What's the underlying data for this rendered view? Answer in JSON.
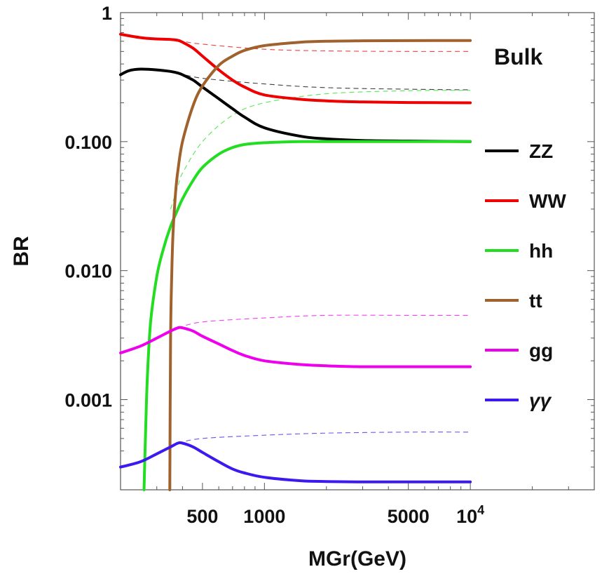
{
  "chart_data": {
    "type": "line",
    "title": "",
    "xlabel": "MGr(GeV)",
    "ylabel": "BR",
    "xscale": "log",
    "yscale": "log",
    "xlim": [
      200,
      40000
    ],
    "ylim": [
      0.0002,
      1
    ],
    "annotation": "Bulk",
    "grid": false,
    "legend_position": "right",
    "x_ticks": [
      {
        "value": 500,
        "label": "500"
      },
      {
        "value": 1000,
        "label": "1000"
      },
      {
        "value": 5000,
        "label": "5000"
      },
      {
        "value": 10000,
        "label": "10",
        "sup": "4"
      }
    ],
    "y_ticks": [
      {
        "value": 1,
        "label": "1"
      },
      {
        "value": 0.1,
        "label": "0.100"
      },
      {
        "value": 0.01,
        "label": "0.010"
      },
      {
        "value": 0.001,
        "label": "0.001"
      }
    ],
    "series": [
      {
        "name": "ZZ",
        "color": "#000000",
        "x": [
          200,
          220,
          250,
          300,
          350,
          380,
          400,
          450,
          500,
          600,
          700,
          800,
          1000,
          1500,
          2000,
          3000,
          5000,
          10000
        ],
        "y": [
          0.33,
          0.355,
          0.365,
          0.36,
          0.35,
          0.34,
          0.33,
          0.3,
          0.265,
          0.215,
          0.18,
          0.155,
          0.128,
          0.11,
          0.105,
          0.102,
          0.101,
          0.1
        ],
        "ref_x": [
          380,
          500,
          1000,
          2000,
          5000,
          10000
        ],
        "ref_y": [
          0.34,
          0.31,
          0.28,
          0.262,
          0.255,
          0.252
        ]
      },
      {
        "name": "WW",
        "color": "#ee0000",
        "x": [
          200,
          250,
          300,
          350,
          380,
          400,
          450,
          500,
          600,
          700,
          800,
          1000,
          1500,
          2000,
          3000,
          5000,
          10000
        ],
        "y": [
          0.68,
          0.64,
          0.625,
          0.62,
          0.61,
          0.59,
          0.53,
          0.46,
          0.36,
          0.3,
          0.265,
          0.23,
          0.213,
          0.207,
          0.203,
          0.201,
          0.2
        ],
        "ref_x": [
          380,
          500,
          1000,
          2000,
          5000,
          10000
        ],
        "ref_y": [
          0.61,
          0.57,
          0.52,
          0.505,
          0.5,
          0.5
        ]
      },
      {
        "name": "hh",
        "color": "#22dd22",
        "x": [
          260,
          265,
          270,
          280,
          300,
          320,
          350,
          380,
          400,
          450,
          500,
          600,
          700,
          800,
          1000,
          1500,
          2000,
          5000,
          10000
        ],
        "y": [
          0.0002,
          0.0006,
          0.0015,
          0.004,
          0.009,
          0.014,
          0.022,
          0.03,
          0.036,
          0.05,
          0.063,
          0.08,
          0.09,
          0.095,
          0.098,
          0.1,
          0.1,
          0.1,
          0.1
        ],
        "ref_x": [
          350,
          380,
          400,
          500,
          700,
          1000,
          2000,
          5000,
          10000
        ],
        "ref_y": [
          0.03,
          0.045,
          0.057,
          0.1,
          0.16,
          0.2,
          0.235,
          0.248,
          0.25
        ]
      },
      {
        "name": "tt",
        "color": "#a0622d",
        "x": [
          347,
          350,
          355,
          360,
          370,
          380,
          400,
          450,
          500,
          600,
          700,
          800,
          1000,
          1500,
          2000,
          3000,
          5000,
          10000
        ],
        "y": [
          0.0002,
          0.003,
          0.01,
          0.02,
          0.04,
          0.06,
          0.1,
          0.19,
          0.27,
          0.39,
          0.46,
          0.51,
          0.555,
          0.59,
          0.6,
          0.605,
          0.607,
          0.608
        ]
      },
      {
        "name": "gg",
        "color": "#ee00ee",
        "x": [
          200,
          250,
          300,
          350,
          380,
          400,
          450,
          500,
          600,
          700,
          800,
          1000,
          1500,
          2000,
          3000,
          5000,
          10000
        ],
        "y": [
          0.0023,
          0.0026,
          0.003,
          0.0034,
          0.0036,
          0.0036,
          0.0034,
          0.0031,
          0.0027,
          0.0024,
          0.0022,
          0.002,
          0.00187,
          0.00183,
          0.0018,
          0.0018,
          0.0018
        ],
        "ref_x": [
          380,
          500,
          1000,
          2000,
          5000,
          10000
        ],
        "ref_y": [
          0.0036,
          0.004,
          0.0043,
          0.0045,
          0.0045,
          0.0045
        ]
      },
      {
        "name": "γγ",
        "color": "#3a1aee",
        "x": [
          200,
          250,
          300,
          350,
          380,
          400,
          450,
          500,
          600,
          700,
          800,
          1000,
          1500,
          2000,
          3000,
          5000,
          10000
        ],
        "y": [
          0.0003,
          0.00033,
          0.00038,
          0.00043,
          0.00046,
          0.00046,
          0.00043,
          0.00039,
          0.00033,
          0.00029,
          0.00027,
          0.00025,
          0.000235,
          0.000232,
          0.00023,
          0.00023,
          0.00023
        ],
        "ref_x": [
          380,
          500,
          1000,
          2000,
          5000,
          10000
        ],
        "ref_y": [
          0.00046,
          0.0005,
          0.00053,
          0.00055,
          0.00056,
          0.00056
        ]
      }
    ]
  }
}
